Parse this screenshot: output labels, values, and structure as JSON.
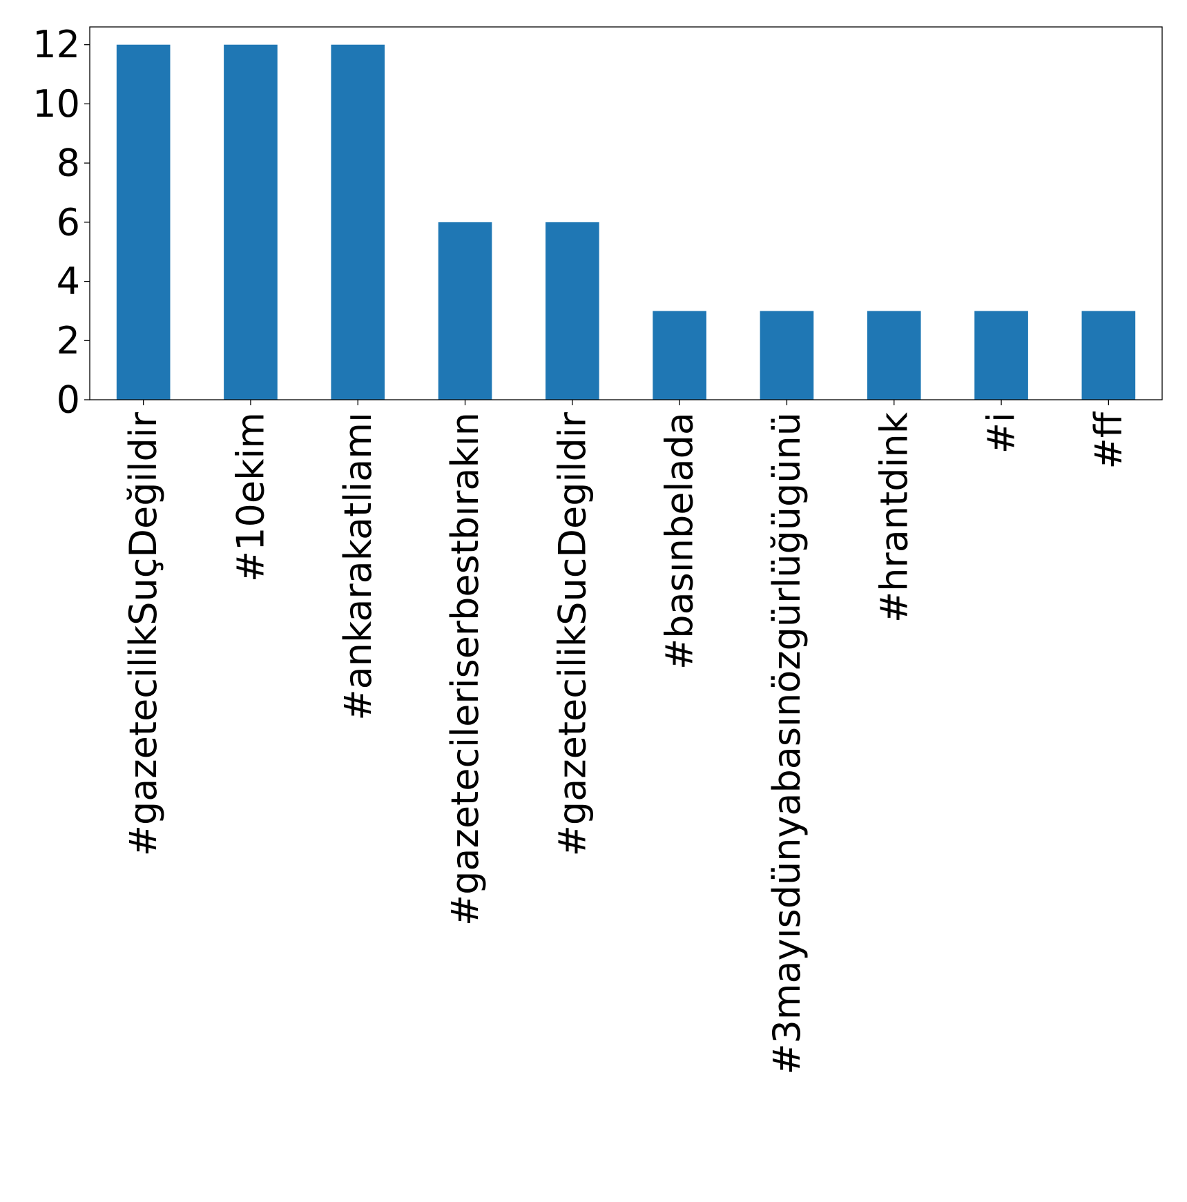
{
  "chart_data": {
    "type": "bar",
    "title": "",
    "xlabel": "",
    "ylabel": "",
    "categories": [
      "#gazetecilikSuçDeğildir",
      "#10ekim",
      "#ankarakatliamı",
      "#gazetecileriserbestbırakın",
      "#gazetecilikSucDegildir",
      "#basınbelada",
      "#3mayısdünyabasınözgürlüğügünü",
      "#hrantdink",
      "#i",
      "#ff"
    ],
    "values": [
      12,
      12,
      12,
      6,
      6,
      3,
      3,
      3,
      3,
      3
    ],
    "ylim": [
      0,
      12.6
    ],
    "yticks": [
      0,
      2,
      4,
      6,
      8,
      10,
      12
    ],
    "colors": {
      "bar": "#1f77b4",
      "axis": "#000000"
    },
    "grid": false,
    "legend": "none"
  }
}
